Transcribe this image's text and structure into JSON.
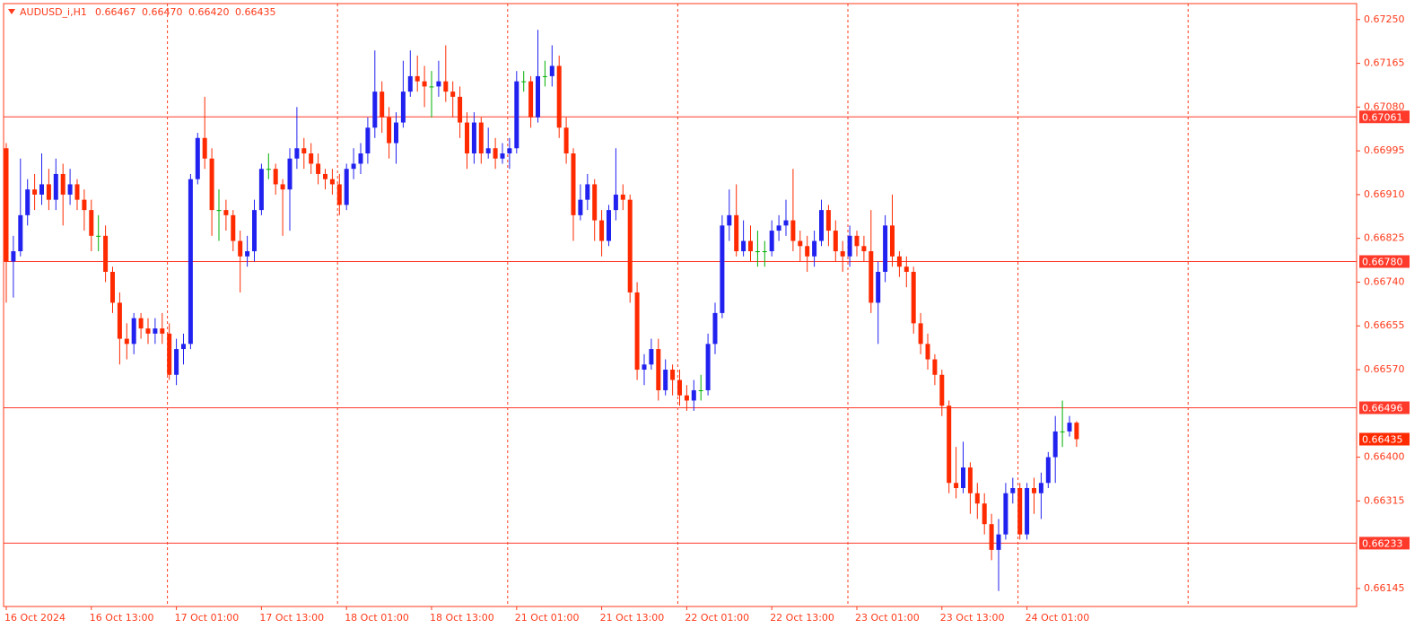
{
  "chart_data": {
    "type": "candlestick",
    "title": "AUDUSD_i,H1",
    "last_bar_labels": {
      "open": "0.66467",
      "high": "0.66470",
      "low": "0.66420",
      "close": "0.66435"
    },
    "up_color": "#2222f0",
    "down_color": "#ff2a00",
    "doji_color": "#00b000",
    "level_color": "#ff3a2a",
    "ylim": [
      0.6611,
      0.67281
    ],
    "yticks": [
      {
        "value": 0.6725,
        "label": "0.67250"
      },
      0.67165,
      {
        "value": 0.6708,
        "label": "0.67080"
      },
      0.66995,
      {
        "value": 0.6691,
        "label": "0.66910"
      },
      0.66825,
      {
        "value": 0.6674,
        "label": "0.66740"
      },
      0.66655,
      {
        "value": 0.6657,
        "label": "0.66570"
      },
      {
        "value": 0.664,
        "label": "0.66400"
      },
      0.66315,
      0.66145
    ],
    "levels": [
      0.67061,
      {
        "value": 0.6678,
        "label": "0.66780"
      },
      0.66496,
      0.66233
    ],
    "categories": [
      "16 Oct 2024",
      null,
      null,
      null,
      null,
      null,
      null,
      null,
      null,
      null,
      null,
      null,
      "16 Oct 13:00",
      null,
      null,
      null,
      null,
      null,
      null,
      null,
      null,
      null,
      null,
      null,
      "17 Oct 01:00",
      null,
      null,
      null,
      null,
      null,
      null,
      null,
      null,
      null,
      null,
      null,
      "17 Oct 13:00",
      null,
      null,
      null,
      null,
      null,
      null,
      null,
      null,
      null,
      null,
      null,
      "18 Oct 01:00",
      null,
      null,
      null,
      null,
      null,
      null,
      null,
      null,
      null,
      null,
      null,
      "18 Oct 13:00",
      null,
      null,
      null,
      null,
      null,
      null,
      null,
      null,
      null,
      null,
      null,
      "21 Oct 01:00",
      null,
      null,
      null,
      null,
      null,
      null,
      null,
      null,
      null,
      null,
      null,
      "21 Oct 13:00",
      null,
      null,
      null,
      null,
      null,
      null,
      null,
      null,
      null,
      null,
      null,
      "22 Oct 01:00",
      null,
      null,
      null,
      null,
      null,
      null,
      null,
      null,
      null,
      null,
      null,
      "22 Oct 13:00",
      null,
      null,
      null,
      null,
      null,
      null,
      null,
      null,
      null,
      null,
      null,
      "23 Oct 01:00",
      null,
      null,
      null,
      null,
      null,
      null,
      null,
      null,
      null,
      null,
      null,
      "23 Oct 13:00",
      null,
      null,
      null,
      null,
      null,
      null,
      null,
      null,
      null,
      null,
      null,
      "24 Oct 01:00",
      null,
      null,
      null,
      null,
      null,
      null,
      null
    ],
    "open": [
      0.67,
      0.6678,
      0.668,
      0.6687,
      0.6692,
      0.6691,
      0.6693,
      0.669,
      0.6695,
      0.6691,
      0.6693,
      0.669,
      0.6688,
      0.6683,
      0.6683,
      0.6676,
      0.667,
      0.6663,
      0.6662,
      0.6667,
      0.6665,
      0.6664,
      0.6665,
      0.6664,
      0.6656,
      0.6661,
      0.6662,
      0.6694,
      0.6702,
      0.6698,
      0.6688,
      0.6688,
      0.6687,
      0.6682,
      0.6679,
      0.668,
      0.6688,
      0.6696,
      0.6696,
      0.6693,
      0.6692,
      0.6698,
      0.67,
      0.6699,
      0.6697,
      0.6695,
      0.6694,
      0.6693,
      0.6689,
      0.6696,
      0.6697,
      0.6699,
      0.6704,
      0.6711,
      0.6706,
      0.6701,
      0.6705,
      0.6711,
      0.6714,
      0.6713,
      0.6712,
      0.6712,
      0.6713,
      0.6711,
      0.671,
      0.6705,
      0.6699,
      0.6705,
      0.6699,
      0.67,
      0.6698,
      0.6699,
      0.67,
      0.6713,
      0.6713,
      0.6706,
      0.6714,
      0.6714,
      0.6716,
      0.6704,
      0.6699,
      0.6687,
      0.669,
      0.6693,
      0.6686,
      0.6682,
      0.6688,
      0.6691,
      0.669,
      0.6672,
      0.6657,
      0.6658,
      0.6661,
      0.6653,
      0.6657,
      0.6655,
      0.6652,
      0.6651,
      0.6653,
      0.6653,
      0.6662,
      0.6668,
      0.6685,
      0.6687,
      0.668,
      0.6682,
      0.668,
      0.668,
      0.668,
      0.6684,
      0.6685,
      0.6686,
      0.6682,
      0.6681,
      0.6679,
      0.6682,
      0.6688,
      0.6684,
      0.668,
      0.6679,
      0.6683,
      0.6681,
      0.668,
      0.667,
      0.6676,
      0.6685,
      0.6679,
      0.6677,
      0.6676,
      0.6666,
      0.6662,
      0.6659,
      0.6656,
      0.665,
      0.6635,
      0.6634,
      0.6638,
      0.6633,
      0.6631,
      0.6627,
      0.6622,
      0.6625,
      0.6633,
      0.6634,
      0.6625,
      0.6634,
      0.6633,
      0.6635,
      0.664,
      0.6645,
      0.6645,
      0.66467
    ],
    "high": [
      0.6701,
      0.6683,
      0.6698,
      0.6694,
      0.6695,
      0.6699,
      0.6696,
      0.6698,
      0.6697,
      0.6696,
      0.6694,
      0.6692,
      0.669,
      0.6687,
      0.6685,
      0.6677,
      0.6672,
      0.6666,
      0.6668,
      0.6668,
      0.6667,
      0.6667,
      0.6668,
      0.6666,
      0.6663,
      0.6664,
      0.6695,
      0.6703,
      0.671,
      0.67,
      0.6692,
      0.669,
      0.6688,
      0.6684,
      0.6683,
      0.669,
      0.6697,
      0.6699,
      0.6697,
      0.6694,
      0.67,
      0.6708,
      0.6702,
      0.6701,
      0.6699,
      0.6696,
      0.6696,
      0.6695,
      0.6697,
      0.67,
      0.6701,
      0.6706,
      0.6719,
      0.6713,
      0.6708,
      0.6707,
      0.6717,
      0.6719,
      0.6718,
      0.6716,
      0.6715,
      0.6717,
      0.672,
      0.6713,
      0.6712,
      0.6707,
      0.6707,
      0.6706,
      0.6704,
      0.6702,
      0.6701,
      0.6702,
      0.6715,
      0.6715,
      0.6714,
      0.6723,
      0.6717,
      0.672,
      0.6718,
      0.6706,
      0.67,
      0.6693,
      0.6695,
      0.6694,
      0.6688,
      0.6689,
      0.67,
      0.6693,
      0.6691,
      0.6674,
      0.666,
      0.6663,
      0.6663,
      0.6659,
      0.6658,
      0.6657,
      0.6654,
      0.6655,
      0.6656,
      0.6664,
      0.667,
      0.6687,
      0.6692,
      0.6693,
      0.6686,
      0.6685,
      0.6684,
      0.6682,
      0.6686,
      0.6687,
      0.669,
      0.6696,
      0.6684,
      0.6683,
      0.6684,
      0.669,
      0.6689,
      0.6686,
      0.6682,
      0.6685,
      0.6684,
      0.6683,
      0.6688,
      0.6678,
      0.6687,
      0.6691,
      0.668,
      0.6679,
      0.6677,
      0.6668,
      0.6664,
      0.666,
      0.6657,
      0.6651,
      0.6642,
      0.6643,
      0.6639,
      0.6635,
      0.6633,
      0.6629,
      0.6628,
      0.6635,
      0.6636,
      0.6635,
      0.6635,
      0.6636,
      0.6637,
      0.6641,
      0.6648,
      0.6651,
      0.6648,
      0.6647
    ],
    "low": [
      0.667,
      0.6671,
      0.6679,
      0.6685,
      0.6688,
      0.6689,
      0.6688,
      0.6688,
      0.6685,
      0.6689,
      0.6688,
      0.6684,
      0.668,
      0.668,
      0.6674,
      0.6668,
      0.6658,
      0.6659,
      0.666,
      0.6663,
      0.6662,
      0.6662,
      0.6662,
      0.6655,
      0.6654,
      0.6658,
      0.6661,
      0.6693,
      0.6696,
      0.6683,
      0.6682,
      0.6684,
      0.668,
      0.6672,
      0.6677,
      0.6678,
      0.6687,
      0.6694,
      0.6691,
      0.6683,
      0.6684,
      0.6696,
      0.6696,
      0.6695,
      0.6693,
      0.6692,
      0.6691,
      0.6687,
      0.6688,
      0.6694,
      0.6695,
      0.6697,
      0.6702,
      0.6703,
      0.6698,
      0.6697,
      0.6704,
      0.671,
      0.6711,
      0.6708,
      0.6706,
      0.671,
      0.6709,
      0.6706,
      0.6702,
      0.6696,
      0.6697,
      0.6697,
      0.6698,
      0.6696,
      0.6697,
      0.6696,
      0.6699,
      0.6711,
      0.6704,
      0.6705,
      0.6712,
      0.6712,
      0.6702,
      0.6697,
      0.6682,
      0.6686,
      0.6688,
      0.6682,
      0.6679,
      0.6681,
      0.6686,
      0.6688,
      0.667,
      0.6655,
      0.6654,
      0.6657,
      0.6651,
      0.6652,
      0.6652,
      0.665,
      0.6649,
      0.6649,
      0.6651,
      0.6652,
      0.666,
      0.6667,
      0.6682,
      0.6679,
      0.6679,
      0.6678,
      0.6677,
      0.6677,
      0.6679,
      0.6682,
      0.6683,
      0.668,
      0.6678,
      0.6676,
      0.6677,
      0.6681,
      0.6681,
      0.6678,
      0.6676,
      0.6677,
      0.6679,
      0.6678,
      0.6668,
      0.6662,
      0.6674,
      0.6677,
      0.6675,
      0.6673,
      0.6664,
      0.666,
      0.6657,
      0.6654,
      0.6648,
      0.6633,
      0.6632,
      0.6633,
      0.6629,
      0.6628,
      0.6625,
      0.662,
      0.6614,
      0.6624,
      0.6631,
      0.6624,
      0.6624,
      0.6629,
      0.6628,
      0.6634,
      0.6635,
      0.6642,
      0.6644,
      0.6642
    ],
    "close": [
      0.6678,
      0.668,
      0.6687,
      0.6692,
      0.6691,
      0.6693,
      0.669,
      0.6695,
      0.6691,
      0.6693,
      0.669,
      0.6688,
      0.6683,
      0.6683,
      0.6676,
      0.667,
      0.6663,
      0.6662,
      0.6667,
      0.6665,
      0.6664,
      0.6665,
      0.6664,
      0.6656,
      0.6661,
      0.6662,
      0.6694,
      0.6702,
      0.6698,
      0.6688,
      0.6688,
      0.6687,
      0.6682,
      0.6679,
      0.668,
      0.6688,
      0.6696,
      0.6696,
      0.6693,
      0.6692,
      0.6698,
      0.67,
      0.6699,
      0.6697,
      0.6695,
      0.6694,
      0.6693,
      0.6689,
      0.6696,
      0.6697,
      0.6699,
      0.6704,
      0.6711,
      0.6706,
      0.6701,
      0.6705,
      0.6711,
      0.6714,
      0.6713,
      0.6712,
      0.6712,
      0.6713,
      0.6711,
      0.671,
      0.6705,
      0.6699,
      0.6705,
      0.6699,
      0.67,
      0.6698,
      0.6699,
      0.67,
      0.6713,
      0.6713,
      0.6706,
      0.6714,
      0.6714,
      0.6716,
      0.6704,
      0.6699,
      0.6687,
      0.669,
      0.6693,
      0.6686,
      0.6682,
      0.6688,
      0.6691,
      0.669,
      0.6672,
      0.6657,
      0.6658,
      0.6661,
      0.6653,
      0.6657,
      0.6655,
      0.6652,
      0.6651,
      0.6653,
      0.6653,
      0.6662,
      0.6668,
      0.6685,
      0.6687,
      0.668,
      0.6682,
      0.668,
      0.668,
      0.668,
      0.6684,
      0.6685,
      0.6686,
      0.6682,
      0.6681,
      0.6679,
      0.6682,
      0.6688,
      0.6684,
      0.668,
      0.6679,
      0.6683,
      0.6681,
      0.668,
      0.667,
      0.6676,
      0.6685,
      0.6679,
      0.6677,
      0.6676,
      0.6666,
      0.6662,
      0.6659,
      0.6656,
      0.665,
      0.6635,
      0.6634,
      0.6638,
      0.6633,
      0.6631,
      0.6627,
      0.6622,
      0.6625,
      0.6633,
      0.6634,
      0.6625,
      0.6634,
      0.6633,
      0.6635,
      0.664,
      0.6645,
      0.6645,
      0.66467,
      0.66435
    ]
  }
}
